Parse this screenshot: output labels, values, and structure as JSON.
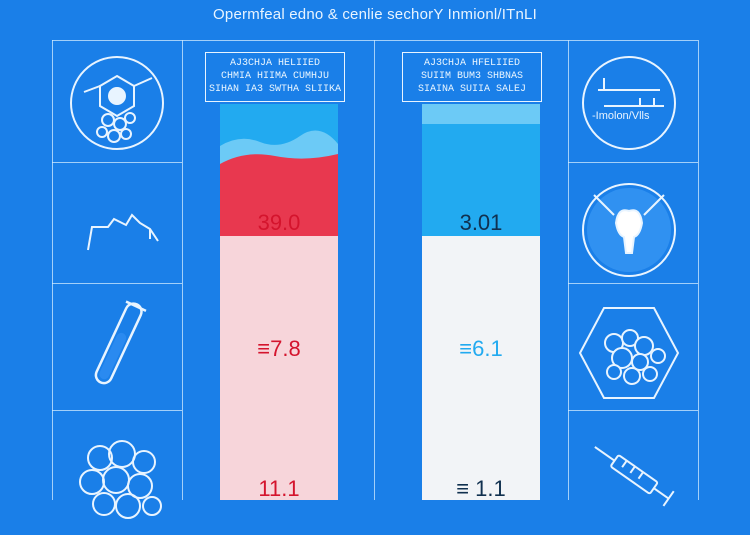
{
  "header": {
    "title": "Opermfeal edno & cenlie sechorY Inmionl/ITnLI"
  },
  "left_labels": {
    "line1": "AJ3CHJA    HELIIED",
    "line2": "CHMIA  HIIMA  CUMHJU",
    "line3": "SIHAN IA3 SWTHA SLIIKA"
  },
  "right_labels": {
    "line1": "AJ3CHJA  HFELIIED",
    "line2": "SUIIM  BUM3  SHBNAS",
    "line3": "SIAINA SUIIA SALEJ"
  },
  "left_tube": {
    "top_value": "39.0",
    "mid_value": "≡7.8",
    "bottom_value": "11.1",
    "level_fraction": 0.25
  },
  "right_tube": {
    "top_value": "3.01",
    "mid_value": "≡6.1",
    "bottom_value": "≡ 1.1",
    "level_fraction": 0.25
  },
  "icons": {
    "left": [
      "molecule-cells-icon",
      "wave-signal-icon",
      "test-tube-icon",
      "cell-cluster-icon"
    ],
    "right": [
      "chart-line-icon",
      "tooth-icon",
      "bubbles-icon",
      "syringe-icon"
    ],
    "chart_caption": "-Imolon/Vlls"
  },
  "colors": {
    "background": "#1a7fe8",
    "red": "#e8384f",
    "pink": "#f7d5da",
    "cyan": "#22aaf0",
    "light": "#f2f4f7"
  }
}
